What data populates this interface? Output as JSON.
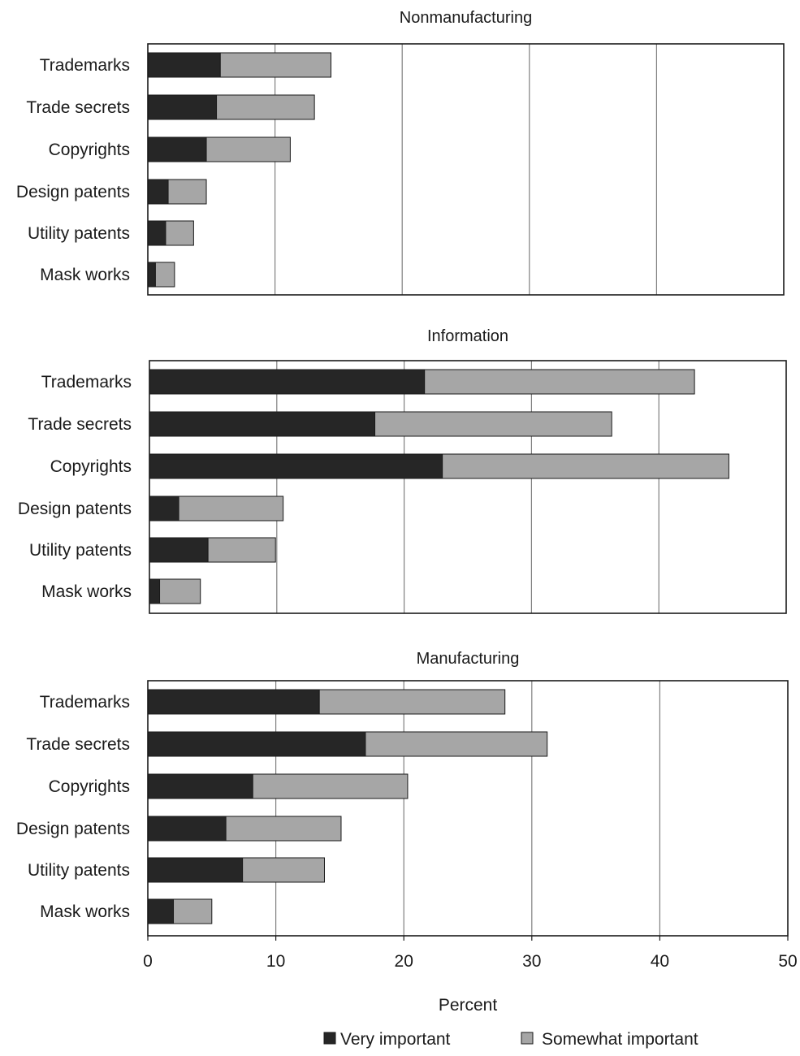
{
  "chart_data": {
    "type": "bar",
    "orientation": "horizontal",
    "stacked": true,
    "xlabel": "Percent",
    "xlim": [
      0,
      50
    ],
    "x_ticks": [
      0,
      10,
      20,
      30,
      40,
      50
    ],
    "grid": "vertical",
    "legend_position": "bottom",
    "colors": {
      "very_important": "#262626",
      "somewhat_important": "#a6a6a6",
      "frame": "#1a1a1a",
      "grid": "#7f7f7f"
    },
    "legend": [
      {
        "key": "very_important",
        "label": "Very important"
      },
      {
        "key": "somewhat_important",
        "label": "Somewhat important"
      }
    ],
    "panels": [
      {
        "title": "Nonmanufacturing",
        "categories": [
          "Trademarks",
          "Trade secrets",
          "Copyrights",
          "Design patents",
          "Utility patents",
          "Mask works"
        ],
        "series": [
          {
            "name": "Very important",
            "values": [
              5.7,
              5.4,
              4.6,
              1.6,
              1.4,
              0.6
            ]
          },
          {
            "name": "Somewhat important",
            "values": [
              8.7,
              7.7,
              6.6,
              3.0,
              2.2,
              1.5
            ]
          }
        ]
      },
      {
        "title": "Information",
        "categories": [
          "Trademarks",
          "Trade secrets",
          "Copyrights",
          "Design patents",
          "Utility patents",
          "Mask works"
        ],
        "series": [
          {
            "name": "Very important",
            "values": [
              21.6,
              17.7,
              23.0,
              2.3,
              4.6,
              0.8
            ]
          },
          {
            "name": "Somewhat important",
            "values": [
              21.2,
              18.6,
              22.5,
              8.2,
              5.3,
              3.2
            ]
          }
        ]
      },
      {
        "title": "Manufacturing",
        "categories": [
          "Trademarks",
          "Trade secrets",
          "Copyrights",
          "Design patents",
          "Utility patents",
          "Mask works"
        ],
        "series": [
          {
            "name": "Very important",
            "values": [
              13.4,
              17.0,
              8.2,
              6.1,
              7.4,
              2.0
            ]
          },
          {
            "name": "Somewhat important",
            "values": [
              14.5,
              14.2,
              12.1,
              9.0,
              6.4,
              3.0
            ]
          }
        ]
      }
    ]
  }
}
